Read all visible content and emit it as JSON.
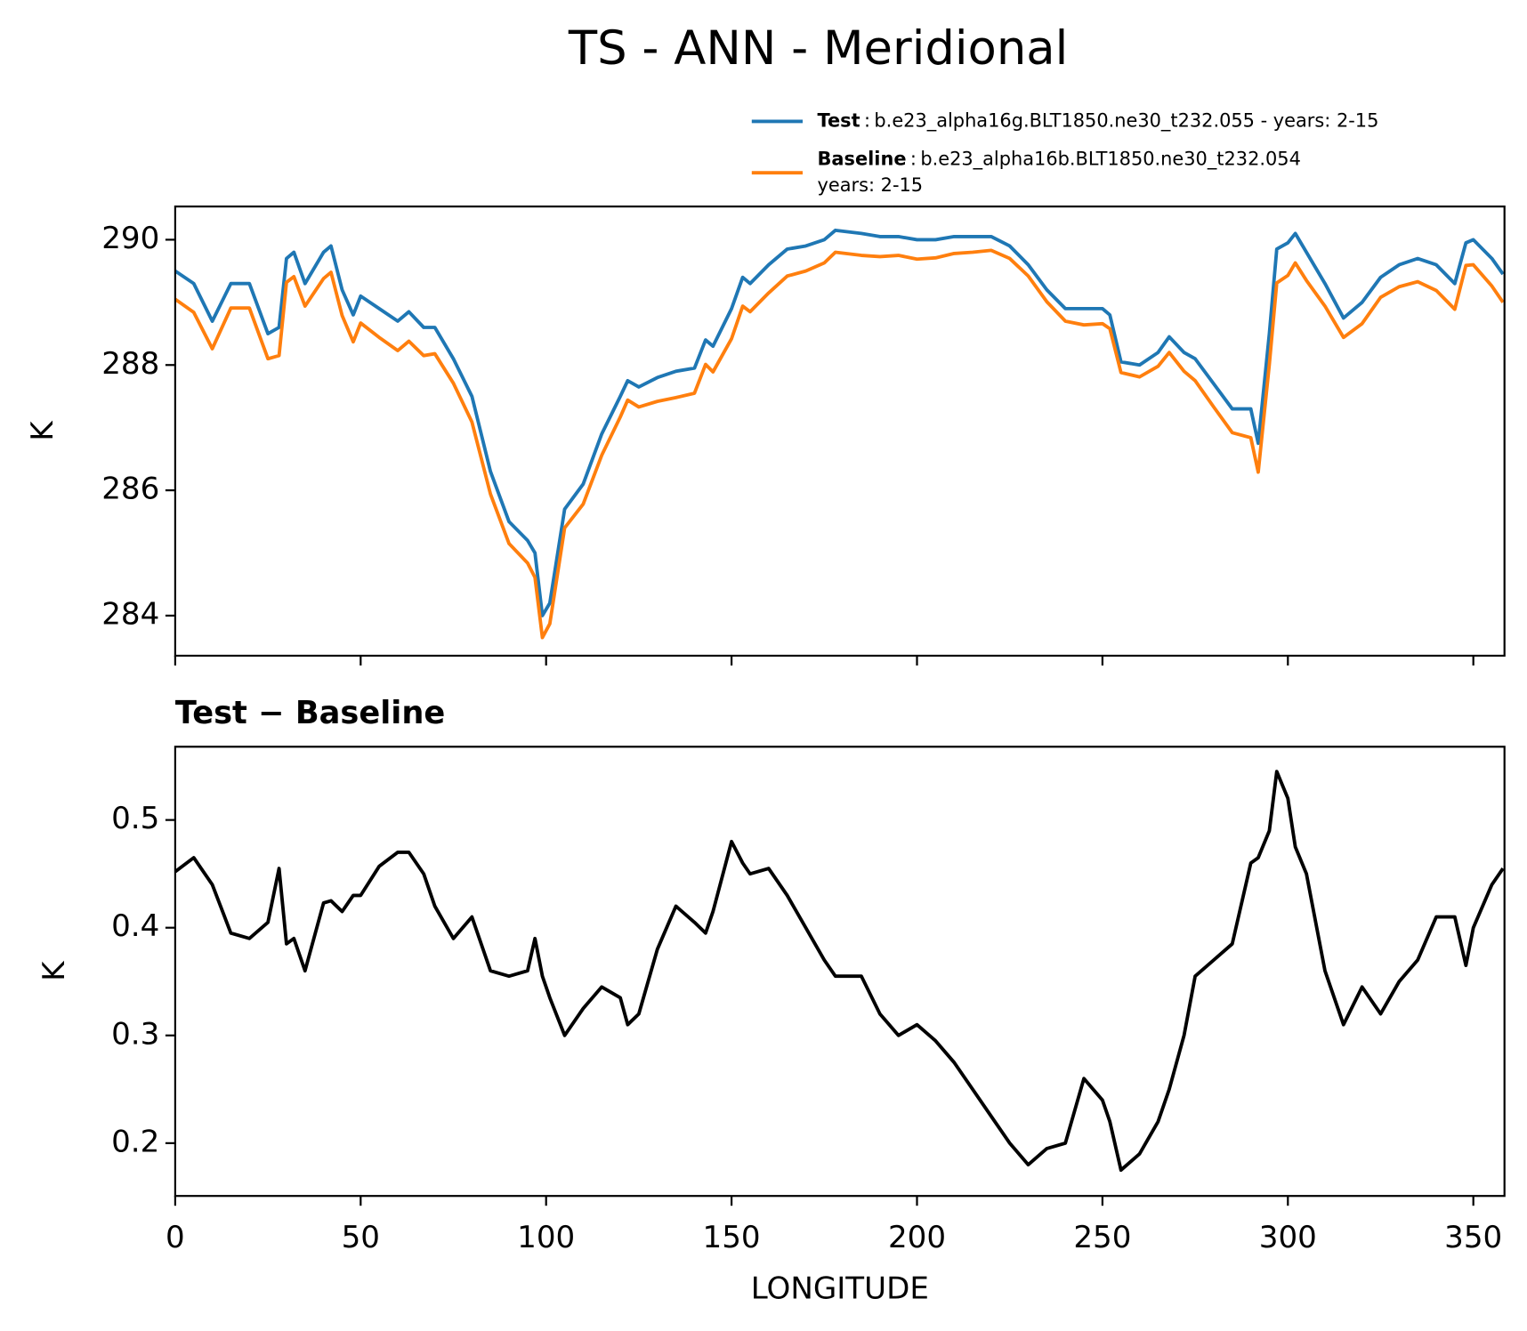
{
  "chart_data": [
    {
      "type": "line",
      "title": "TS - ANN - Meridional",
      "ylabel": "K",
      "x": [
        0,
        5,
        10,
        15,
        20,
        25,
        28,
        30,
        32,
        35,
        40,
        42,
        45,
        48,
        50,
        55,
        60,
        63,
        67,
        70,
        75,
        80,
        85,
        90,
        95,
        97,
        99,
        101,
        105,
        110,
        115,
        120,
        122,
        125,
        130,
        135,
        140,
        143,
        145,
        150,
        153,
        155,
        160,
        165,
        170,
        175,
        178,
        185,
        190,
        195,
        200,
        205,
        210,
        215,
        220,
        225,
        230,
        235,
        240,
        245,
        250,
        252,
        255,
        260,
        265,
        268,
        272,
        275,
        280,
        285,
        290,
        292,
        295,
        297,
        300,
        302,
        305,
        310,
        315,
        320,
        325,
        330,
        335,
        340,
        345,
        348,
        350,
        355,
        358
      ],
      "series": [
        {
          "name": "Test",
          "label": [
            "b.e23_alpha16g.BLT1850.ne30_t232.055 - years: 2-15"
          ],
          "color": "#1f77b4",
          "values": [
            289.5,
            289.3,
            288.7,
            289.3,
            289.3,
            288.5,
            288.6,
            289.7,
            289.8,
            289.3,
            289.8,
            289.9,
            289.2,
            288.8,
            289.1,
            288.9,
            288.7,
            288.85,
            288.6,
            288.6,
            288.1,
            287.5,
            286.3,
            285.5,
            285.2,
            285.0,
            284.0,
            284.2,
            285.7,
            286.1,
            286.9,
            287.5,
            287.75,
            287.65,
            287.8,
            287.9,
            287.95,
            288.4,
            288.3,
            288.9,
            289.4,
            289.3,
            289.6,
            289.85,
            289.9,
            290.0,
            290.15,
            290.1,
            290.05,
            290.05,
            290.0,
            290.0,
            290.05,
            290.05,
            290.05,
            289.9,
            289.6,
            289.2,
            288.9,
            288.9,
            288.9,
            288.8,
            288.05,
            288.0,
            288.2,
            288.45,
            288.2,
            288.1,
            287.7,
            287.3,
            287.3,
            286.75,
            288.5,
            289.85,
            289.95,
            290.1,
            289.8,
            289.3,
            288.75,
            289.0,
            289.4,
            289.6,
            289.7,
            289.6,
            289.3,
            289.95,
            290.0,
            289.7,
            289.45
          ]
        },
        {
          "name": "Baseline",
          "label": [
            "b.e23_alpha16b.BLT1850.ne30_t232.054",
            "years: 2-15"
          ],
          "color": "#ff7f0e",
          "values": [
            289.05,
            288.84,
            288.26,
            288.91,
            288.91,
            288.1,
            288.15,
            289.32,
            289.41,
            288.94,
            289.38,
            289.48,
            288.79,
            288.37,
            288.67,
            288.44,
            288.23,
            288.38,
            288.15,
            288.18,
            287.71,
            287.09,
            285.94,
            285.15,
            284.84,
            284.61,
            283.65,
            283.87,
            285.4,
            285.78,
            286.56,
            287.17,
            287.44,
            287.33,
            287.42,
            287.48,
            287.55,
            288.01,
            287.89,
            288.42,
            288.94,
            288.85,
            289.15,
            289.42,
            289.5,
            289.63,
            289.8,
            289.75,
            289.73,
            289.75,
            289.69,
            289.71,
            289.78,
            289.8,
            289.83,
            289.7,
            289.42,
            289.01,
            288.7,
            288.64,
            288.66,
            288.58,
            287.88,
            287.81,
            287.98,
            288.2,
            287.9,
            287.75,
            287.33,
            286.92,
            286.84,
            286.29,
            288.01,
            289.31,
            289.43,
            289.63,
            289.35,
            288.94,
            288.44,
            288.66,
            289.08,
            289.25,
            289.33,
            289.19,
            288.89,
            289.59,
            289.6,
            289.26,
            289.0
          ]
        }
      ],
      "xlim": [
        0,
        358.4
      ],
      "xticks": [
        0,
        50,
        100,
        150,
        200,
        250,
        300,
        350
      ],
      "xtick_labels": false,
      "ylim": [
        283.36,
        290.53
      ],
      "yticks": [
        284,
        286,
        288,
        290
      ],
      "legend": "upper right"
    },
    {
      "type": "line",
      "title": "Test − Baseline",
      "xlabel": "LONGITUDE",
      "ylabel": "K",
      "color": "#000000",
      "x": [
        0,
        5,
        10,
        15,
        20,
        25,
        28,
        30,
        32,
        35,
        40,
        42,
        45,
        48,
        50,
        55,
        60,
        63,
        67,
        70,
        75,
        80,
        85,
        90,
        95,
        97,
        99,
        101,
        105,
        110,
        115,
        120,
        122,
        125,
        130,
        135,
        140,
        143,
        145,
        150,
        153,
        155,
        160,
        165,
        170,
        175,
        178,
        185,
        190,
        195,
        200,
        205,
        210,
        215,
        220,
        225,
        230,
        235,
        240,
        245,
        250,
        252,
        255,
        260,
        265,
        268,
        272,
        275,
        280,
        285,
        290,
        292,
        295,
        297,
        300,
        302,
        305,
        310,
        315,
        320,
        325,
        330,
        335,
        340,
        345,
        348,
        350,
        355,
        358
      ],
      "values": [
        0.452,
        0.465,
        0.44,
        0.395,
        0.39,
        0.405,
        0.455,
        0.385,
        0.39,
        0.36,
        0.423,
        0.425,
        0.415,
        0.43,
        0.43,
        0.457,
        0.47,
        0.47,
        0.45,
        0.42,
        0.39,
        0.41,
        0.36,
        0.355,
        0.36,
        0.39,
        0.355,
        0.335,
        0.3,
        0.325,
        0.345,
        0.335,
        0.31,
        0.32,
        0.38,
        0.42,
        0.405,
        0.395,
        0.415,
        0.48,
        0.46,
        0.45,
        0.455,
        0.43,
        0.4,
        0.37,
        0.355,
        0.355,
        0.32,
        0.3,
        0.31,
        0.295,
        0.275,
        0.25,
        0.225,
        0.2,
        0.18,
        0.195,
        0.2,
        0.26,
        0.24,
        0.22,
        0.175,
        0.19,
        0.22,
        0.25,
        0.3,
        0.355,
        0.37,
        0.385,
        0.46,
        0.465,
        0.49,
        0.545,
        0.52,
        0.475,
        0.45,
        0.36,
        0.31,
        0.345,
        0.32,
        0.35,
        0.37,
        0.41,
        0.41,
        0.365,
        0.4,
        0.44,
        0.455
      ],
      "xlim": [
        0,
        358.4
      ],
      "xticks": [
        0,
        50,
        100,
        150,
        200,
        250,
        300,
        350
      ],
      "xtick_labels": true,
      "ylim": [
        0.151,
        0.568
      ],
      "yticks": [
        0.2,
        0.3,
        0.4,
        0.5
      ]
    }
  ]
}
